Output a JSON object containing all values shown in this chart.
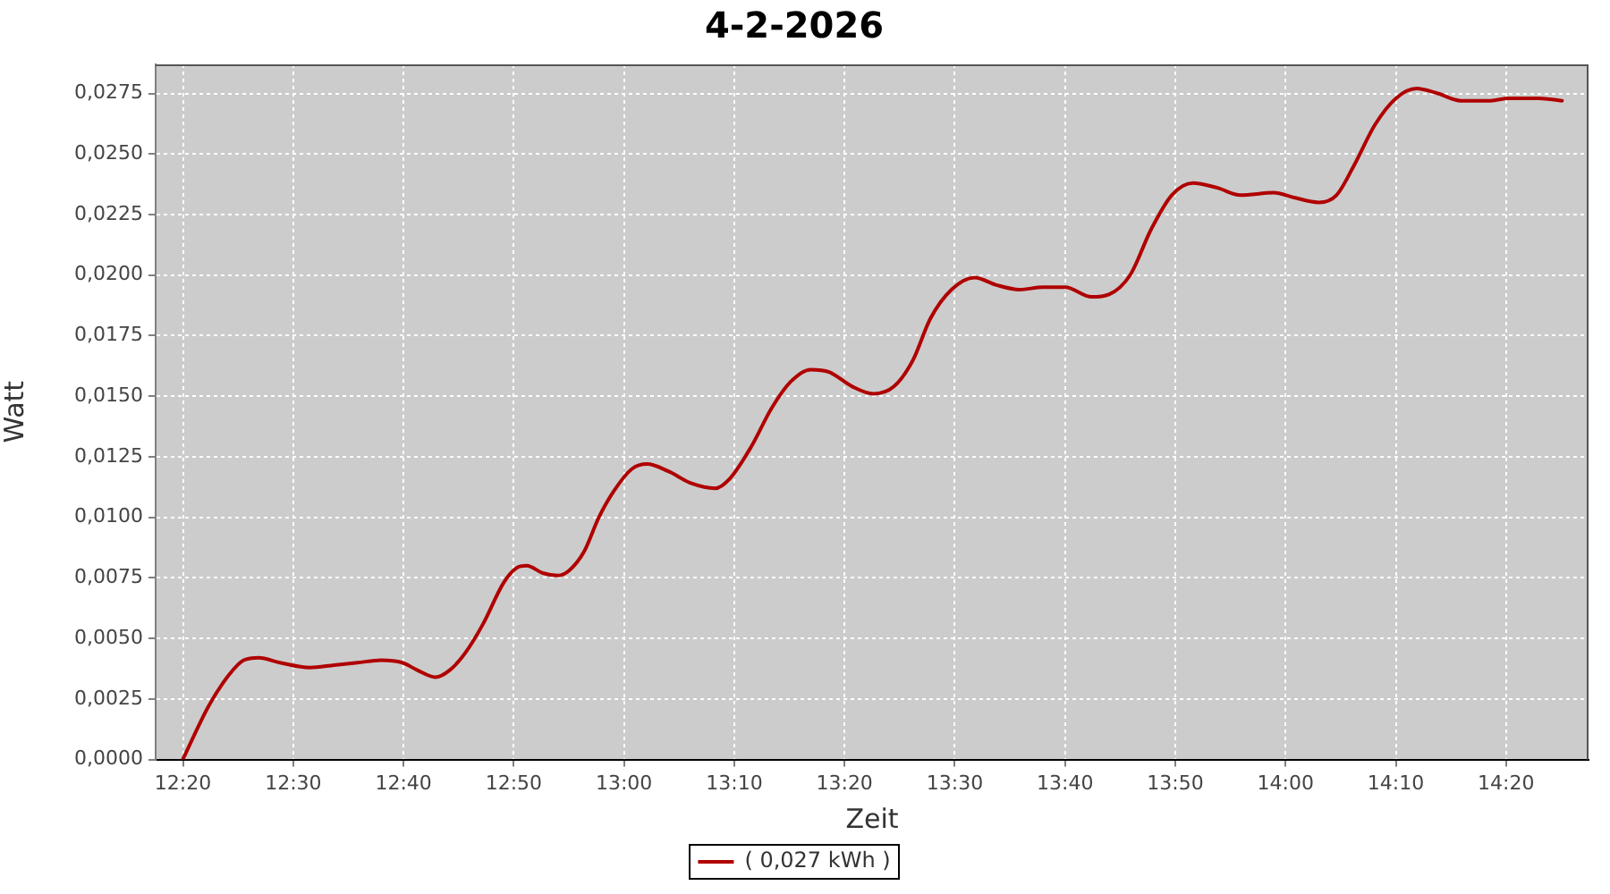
{
  "chart_data": {
    "type": "line",
    "title": "4-2-2026",
    "xlabel": "Zeit",
    "ylabel": "Watt",
    "x": [
      12.333,
      12.372,
      12.403,
      12.425,
      12.448,
      12.48,
      12.525,
      12.562,
      12.597,
      12.633,
      12.665,
      12.687,
      12.715,
      12.737,
      12.76,
      12.787,
      12.818,
      12.837,
      12.853,
      12.877,
      12.9,
      12.917,
      12.94,
      12.962,
      12.985,
      13.012,
      13.035,
      13.067,
      13.102,
      13.138,
      13.16,
      13.192,
      13.223,
      13.252,
      13.282,
      13.31,
      13.345,
      13.377,
      13.408,
      13.437,
      13.463,
      13.495,
      13.53,
      13.562,
      13.598,
      13.633,
      13.667,
      13.707,
      13.733,
      13.765,
      13.797,
      13.828,
      13.86,
      13.897,
      13.932,
      13.982,
      14.013,
      14.05,
      14.077,
      14.103,
      14.135,
      14.167,
      14.198,
      14.23,
      14.265,
      14.31,
      14.337,
      14.383,
      14.418
    ],
    "series": [
      {
        "name": "( 0,027 kWh )",
        "color": "#b00000",
        "values": [
          0.0,
          0.0022,
          0.0035,
          0.0041,
          0.0042,
          0.004,
          0.0038,
          0.0039,
          0.004,
          0.0041,
          0.004,
          0.0037,
          0.0034,
          0.0037,
          0.0044,
          0.0056,
          0.0073,
          0.0079,
          0.008,
          0.0077,
          0.0076,
          0.0078,
          0.0086,
          0.01,
          0.0111,
          0.012,
          0.0122,
          0.0119,
          0.0114,
          0.0112,
          0.0116,
          0.0129,
          0.0145,
          0.0156,
          0.0161,
          0.016,
          0.0154,
          0.0151,
          0.0154,
          0.0165,
          0.0182,
          0.0194,
          0.0199,
          0.0196,
          0.0194,
          0.0195,
          0.0195,
          0.0191,
          0.0192,
          0.02,
          0.0219,
          0.0233,
          0.0238,
          0.0236,
          0.0233,
          0.0234,
          0.0232,
          0.023,
          0.0233,
          0.0245,
          0.0262,
          0.0273,
          0.0277,
          0.0275,
          0.0272,
          0.0272,
          0.0273,
          0.0273,
          0.0272
        ]
      }
    ],
    "xlim": [
      12.292,
      14.458
    ],
    "ylim": [
      0,
      0.0287
    ],
    "xticks": [
      {
        "value": 12.3333,
        "label": "12:20"
      },
      {
        "value": 12.5,
        "label": "12:30"
      },
      {
        "value": 12.6667,
        "label": "12:40"
      },
      {
        "value": 12.8333,
        "label": "12:50"
      },
      {
        "value": 13,
        "label": "13:00"
      },
      {
        "value": 13.1667,
        "label": "13:10"
      },
      {
        "value": 13.3333,
        "label": "13:20"
      },
      {
        "value": 13.5,
        "label": "13:30"
      },
      {
        "value": 13.6667,
        "label": "13:40"
      },
      {
        "value": 13.8333,
        "label": "13:50"
      },
      {
        "value": 14,
        "label": "14:00"
      },
      {
        "value": 14.1667,
        "label": "14:10"
      },
      {
        "value": 14.3333,
        "label": "14:20"
      }
    ],
    "yticks": [
      {
        "value": 0,
        "label": "0,0000"
      },
      {
        "value": 0.0025,
        "label": "0,0025"
      },
      {
        "value": 0.005,
        "label": "0,0050"
      },
      {
        "value": 0.0075,
        "label": "0,0075"
      },
      {
        "value": 0.01,
        "label": "0,0100"
      },
      {
        "value": 0.0125,
        "label": "0,0125"
      },
      {
        "value": 0.015,
        "label": "0,0150"
      },
      {
        "value": 0.0175,
        "label": "0,0175"
      },
      {
        "value": 0.02,
        "label": "0,0200"
      },
      {
        "value": 0.0225,
        "label": "0,0225"
      },
      {
        "value": 0.025,
        "label": "0,0250"
      },
      {
        "value": 0.0275,
        "label": "0,0275"
      }
    ],
    "grid": true,
    "legend": "bottom",
    "marker": "none"
  }
}
